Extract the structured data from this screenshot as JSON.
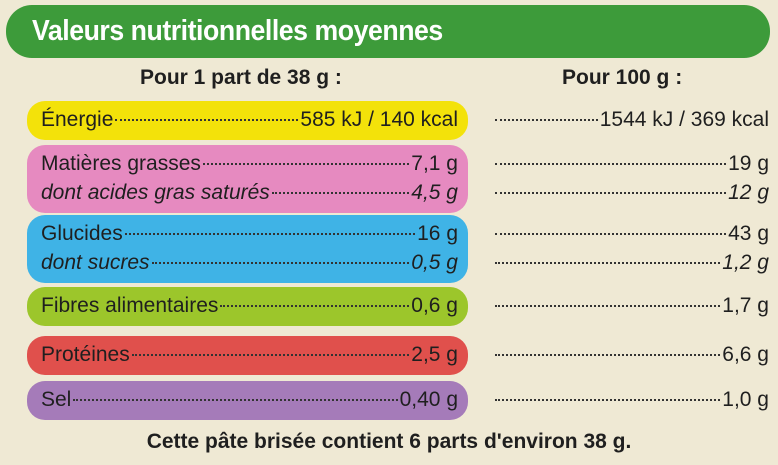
{
  "header": {
    "title": "Valeurs nutritionnelles moyennes"
  },
  "columns": {
    "per_portion": "Pour 1 part de 38 g :",
    "per_100g": "Pour 100 g :"
  },
  "rows": [
    {
      "lines": [
        {
          "label": "Énergie",
          "per_portion": "585 kJ / 140 kcal",
          "per_100g": "1544 kJ / 369 kcal"
        }
      ]
    },
    {
      "lines": [
        {
          "label": "Matières grasses",
          "per_portion": "7,1 g",
          "per_100g": "19 g"
        },
        {
          "label": "dont acides gras saturés",
          "per_portion": "4,5 g",
          "per_100g": "12 g"
        }
      ]
    },
    {
      "lines": [
        {
          "label": "Glucides",
          "per_portion": "16 g",
          "per_100g": "43 g"
        },
        {
          "label": "dont sucres",
          "per_portion": "0,5 g",
          "per_100g": "1,2 g"
        }
      ]
    },
    {
      "lines": [
        {
          "label": "Fibres alimentaires",
          "per_portion": "0,6 g",
          "per_100g": "1,7 g"
        }
      ]
    },
    {
      "lines": [
        {
          "label": "Protéines",
          "per_portion": "2,5 g",
          "per_100g": "6,6 g"
        }
      ]
    },
    {
      "lines": [
        {
          "label": "Sel",
          "per_portion": "0,40 g",
          "per_100g": "1,0 g"
        }
      ]
    }
  ],
  "footer": "Cette pâte brisée contient 6 parts d'environ 38 g."
}
